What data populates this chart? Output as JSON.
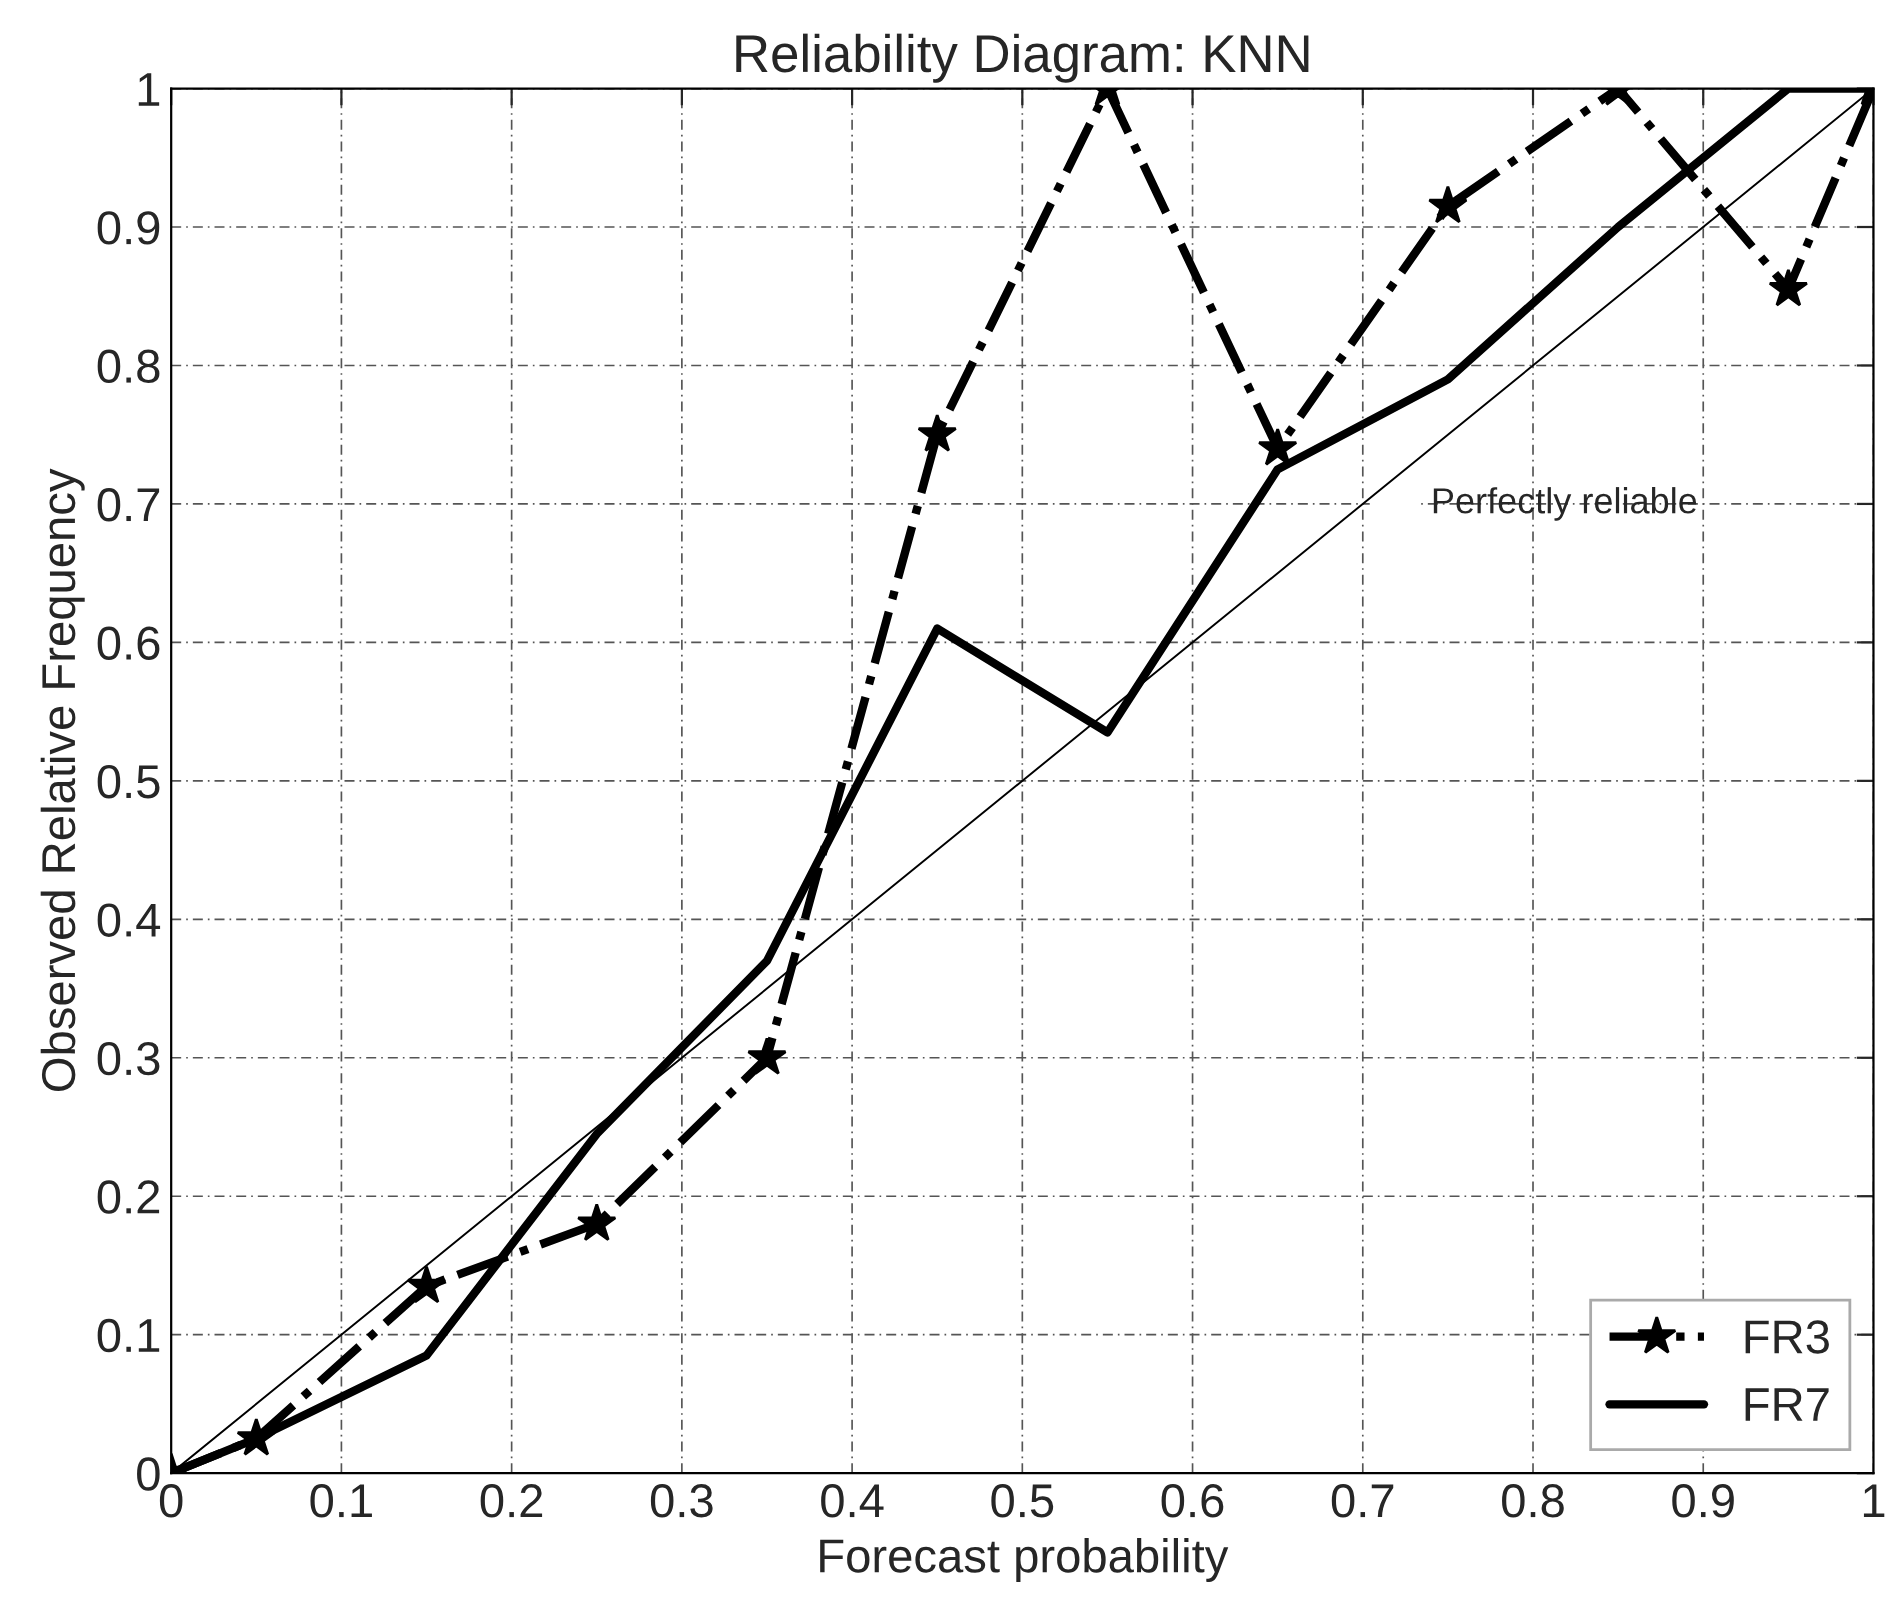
{
  "chart_data": {
    "type": "line",
    "title": "Reliability Diagram: KNN",
    "xlabel": "Forecast probability",
    "ylabel": "Observed Relative Frequency",
    "xlim": [
      0,
      1
    ],
    "ylim": [
      0,
      1
    ],
    "xticks": [
      0,
      0.1,
      0.2,
      0.3,
      0.4,
      0.5,
      0.6,
      0.7,
      0.8,
      0.9,
      1
    ],
    "yticks": [
      0,
      0.1,
      0.2,
      0.3,
      0.4,
      0.5,
      0.6,
      0.7,
      0.8,
      0.9,
      1
    ],
    "grid": true,
    "legend": "bottom right",
    "series": [
      {
        "name": "FR3",
        "color": "#000000",
        "marker": "star",
        "line_style": "dashdot",
        "x": [
          0,
          0.05,
          0.15,
          0.25,
          0.35,
          0.45,
          0.55,
          0.65,
          0.75,
          0.85,
          0.95,
          1
        ],
        "values": [
          0,
          0.025,
          0.135,
          0.18,
          0.3,
          0.75,
          1.0,
          0.74,
          0.915,
          1.0,
          0.855,
          1.0
        ]
      },
      {
        "name": "FR7",
        "color": "#000000",
        "line_style": "solid",
        "x": [
          0,
          0.05,
          0.15,
          0.25,
          0.35,
          0.45,
          0.55,
          0.65,
          0.75,
          0.85,
          0.95,
          1
        ],
        "values": [
          0,
          0.025,
          0.085,
          0.245,
          0.37,
          0.61,
          0.535,
          0.725,
          0.79,
          0.9,
          1.0,
          1.0
        ]
      },
      {
        "color": "#000000",
        "line_style": "solid",
        "x": [
          0,
          1
        ],
        "values": [
          0,
          1
        ]
      }
    ],
    "annotations": [
      {
        "text": "Perfectly reliable",
        "x": 0.7,
        "y": 0.7
      }
    ]
  }
}
